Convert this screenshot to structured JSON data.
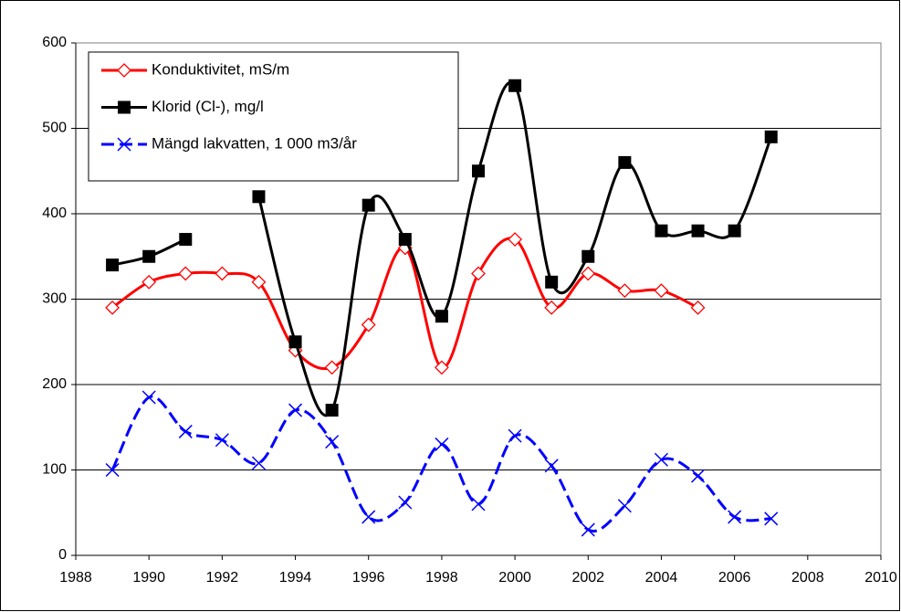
{
  "chart_data": {
    "type": "line",
    "x": [
      1989,
      1990,
      1991,
      1992,
      1993,
      1994,
      1995,
      1996,
      1997,
      1998,
      1999,
      2000,
      2001,
      2002,
      2003,
      2004,
      2005,
      2006,
      2007
    ],
    "series": [
      {
        "name": "Konduktivitet, mS/m",
        "color": "#ff0000",
        "marker": "diamond",
        "linestyle": "solid",
        "values": [
          290,
          320,
          330,
          330,
          320,
          240,
          220,
          270,
          360,
          220,
          330,
          370,
          290,
          330,
          310,
          310,
          290,
          null,
          null
        ]
      },
      {
        "name": "Klorid (Cl-), mg/l",
        "color": "#000000",
        "marker": "square",
        "linestyle": "solid",
        "values": [
          340,
          350,
          370,
          null,
          420,
          250,
          170,
          410,
          370,
          280,
          450,
          550,
          320,
          350,
          460,
          380,
          380,
          380,
          490
        ]
      },
      {
        "name": "Mängd lakvatten, 1 000 m3/år",
        "color": "#0000ff",
        "marker": "x",
        "linestyle": "dashed",
        "values": [
          100,
          185,
          145,
          135,
          108,
          170,
          133,
          45,
          62,
          130,
          60,
          140,
          105,
          30,
          58,
          112,
          93,
          45,
          43
        ]
      }
    ],
    "xlim": [
      1988,
      2010
    ],
    "xticks": [
      1988,
      1990,
      1992,
      1994,
      1996,
      1998,
      2000,
      2002,
      2004,
      2006,
      2008,
      2010
    ],
    "ylim": [
      0,
      600
    ],
    "yticks": [
      0,
      100,
      200,
      300,
      400,
      500,
      600
    ],
    "grid": true,
    "smooth": true,
    "legend": "upper left"
  }
}
